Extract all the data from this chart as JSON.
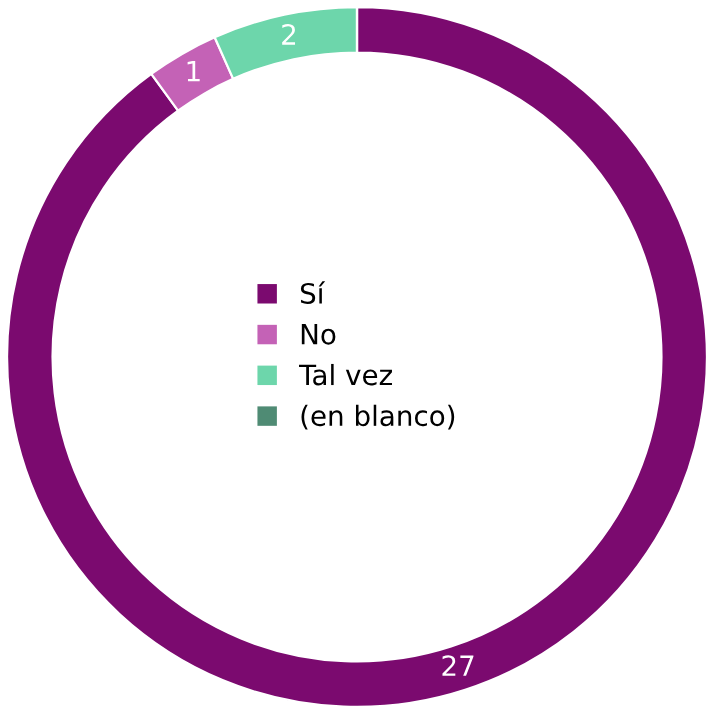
{
  "chart_data": {
    "type": "donut",
    "categories": [
      "Sí",
      "No",
      "Tal vez",
      "(en blanco)"
    ],
    "values": [
      27,
      1,
      2,
      0
    ],
    "colors": [
      "#7b0a6f",
      "#c462b6",
      "#6dd6ab",
      "#4f8b74"
    ],
    "data_labels": true,
    "legend": "center"
  }
}
